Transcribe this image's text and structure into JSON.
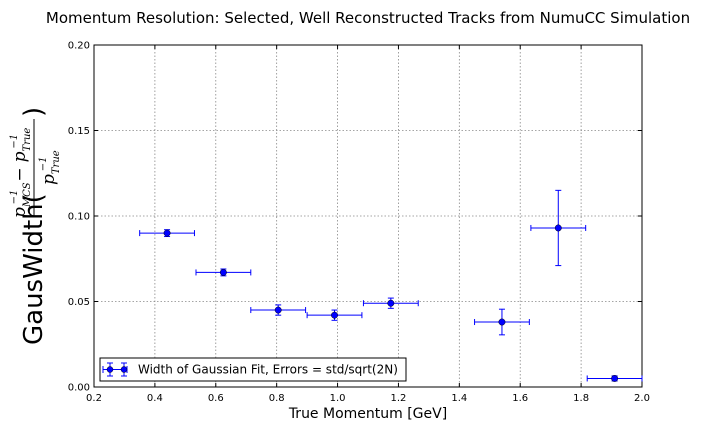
{
  "chart_data": {
    "type": "scatter",
    "title": "Momentum Resolution: Selected, Well Reconstructed Tracks from NumuCC Simulation",
    "xlabel": "True Momentum [GeV]",
    "ylabel": {
      "prefix": "GausWidth(",
      "numerator": "pₘₑₛ⁻¹ − pₜᵣᵤₑ⁻¹",
      "denominator": "pₜᵣᵤₑ⁻¹",
      "suffix": ")",
      "num_p1": "p",
      "num_sub1": "MCS",
      "num_minus": "−",
      "num_p2": "p",
      "num_sub2": "True",
      "den_p": "p",
      "den_sub": "True",
      "sup": "−1"
    },
    "xlim": [
      0.2,
      2.0
    ],
    "ylim": [
      0.0,
      0.2
    ],
    "xticks": [
      "0.2",
      "0.4",
      "0.6",
      "0.8",
      "1.0",
      "1.2",
      "1.4",
      "1.6",
      "1.8",
      "2.0"
    ],
    "yticks": [
      "0.00",
      "0.05",
      "0.10",
      "0.15",
      "0.20"
    ],
    "grid": true,
    "legend_position": "lower-left",
    "series": [
      {
        "name": "Width of Gaussian Fit, Errors = std/sqrt(2N)",
        "color": "#0000ff",
        "points": [
          {
            "x": 0.44,
            "y": 0.09,
            "xerr": 0.09,
            "yerr": 0.002
          },
          {
            "x": 0.625,
            "y": 0.067,
            "xerr": 0.09,
            "yerr": 0.002
          },
          {
            "x": 0.805,
            "y": 0.045,
            "xerr": 0.09,
            "yerr": 0.003
          },
          {
            "x": 0.99,
            "y": 0.042,
            "xerr": 0.09,
            "yerr": 0.003
          },
          {
            "x": 1.175,
            "y": 0.049,
            "xerr": 0.09,
            "yerr": 0.003
          },
          {
            "x": 1.54,
            "y": 0.038,
            "xerr": 0.09,
            "yerr": 0.0075
          },
          {
            "x": 1.725,
            "y": 0.093,
            "xerr": 0.09,
            "yerr": 0.022
          },
          {
            "x": 1.91,
            "y": 0.005,
            "xerr": 0.09,
            "yerr": 0.0015
          }
        ]
      }
    ]
  }
}
